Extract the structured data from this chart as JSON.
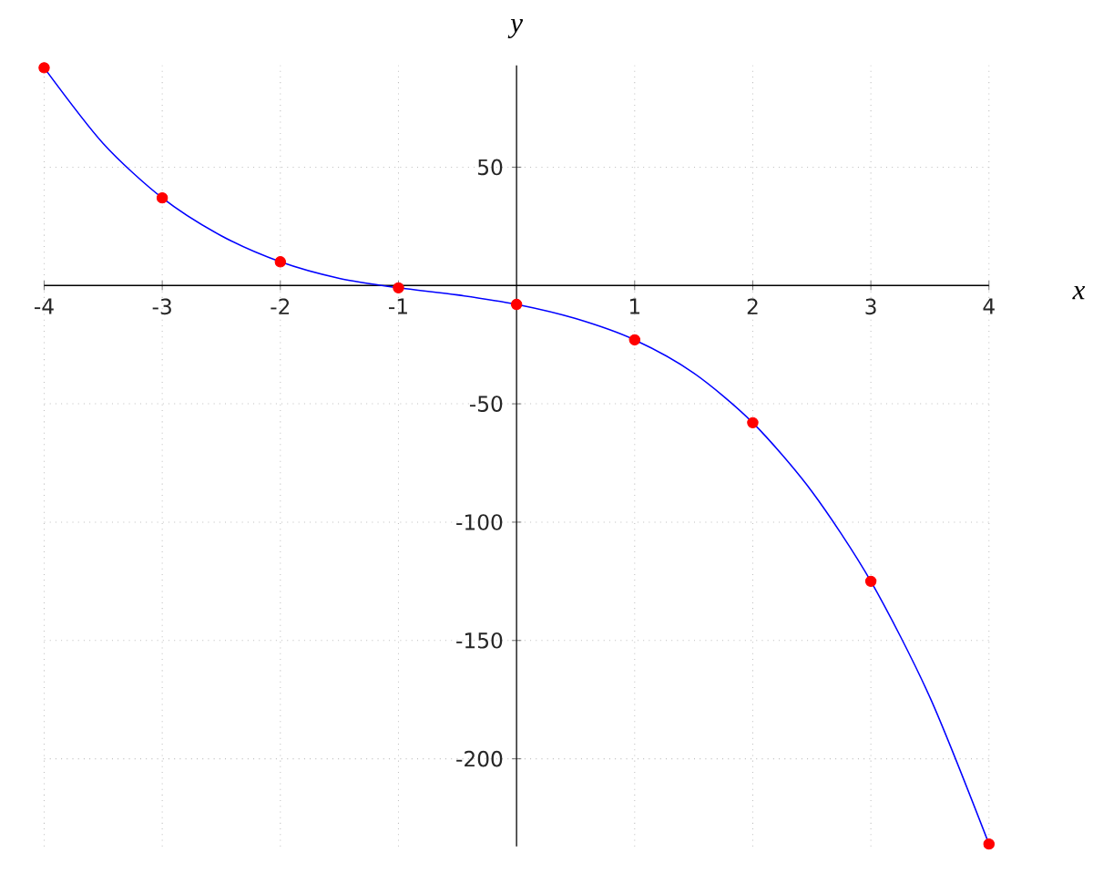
{
  "chart_data": {
    "type": "line",
    "xlabel": "x",
    "ylabel": "y",
    "xlim": [
      -4,
      4
    ],
    "ylim": [
      -237,
      93
    ],
    "xticks": [
      -4,
      -3,
      -2,
      -1,
      1,
      2,
      3,
      4
    ],
    "yticks": [
      -200,
      -150,
      -100,
      -50,
      50
    ],
    "grid": true,
    "series": [
      {
        "color": "#0000ff",
        "line_style": "solid",
        "marker": "none",
        "x": [
          -4,
          -3.5,
          -3,
          -2.5,
          -2,
          -1.5,
          -1,
          -0.5,
          0,
          0.5,
          1,
          1.5,
          2,
          2.5,
          3,
          3.5,
          4
        ],
        "values": [
          92,
          60,
          37,
          21,
          10,
          3,
          -1,
          -4,
          -8,
          -14,
          -23,
          -37,
          -58,
          -87,
          -125,
          -174,
          -236
        ]
      },
      {
        "type": "scatter",
        "color": "#ff0000",
        "marker": "circle",
        "x": [
          -4,
          -3,
          -2,
          -1,
          0,
          1,
          2,
          3,
          4
        ],
        "values": [
          92,
          37,
          10,
          -1,
          -8,
          -23,
          -58,
          -125,
          -236
        ]
      }
    ]
  }
}
